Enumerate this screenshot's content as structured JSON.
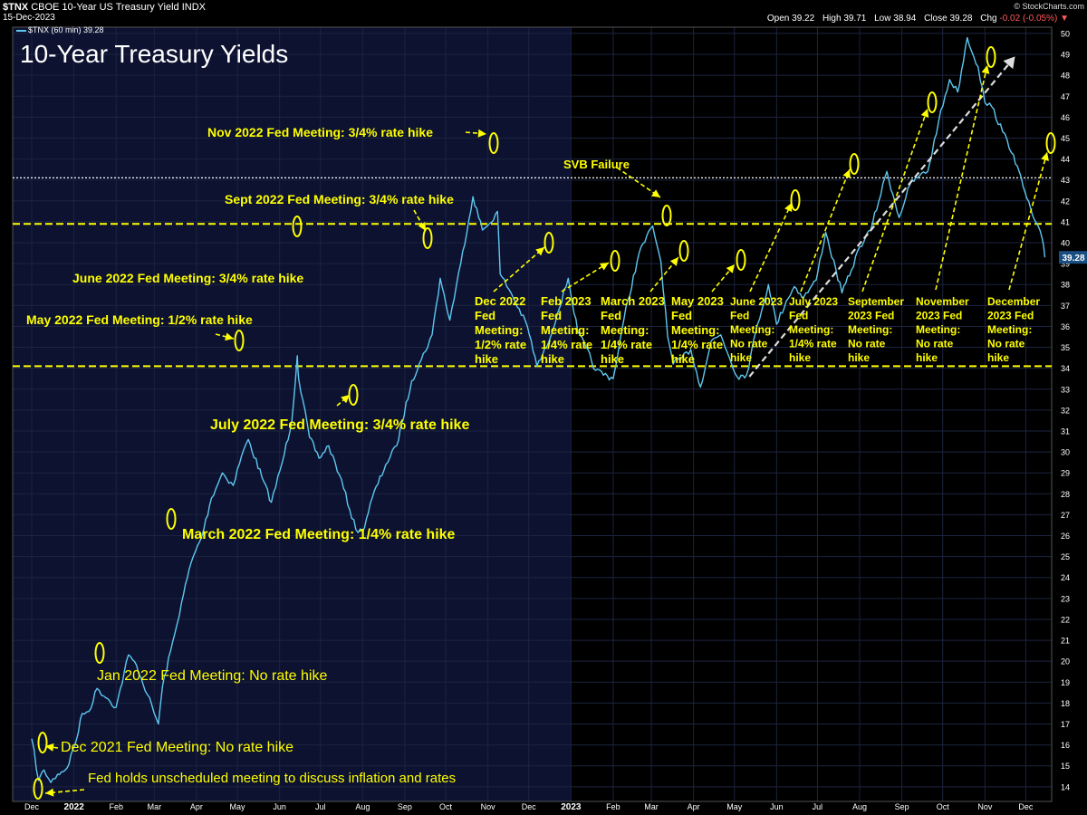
{
  "header": {
    "symbol": "$TNX",
    "description": "CBOE 10-Year US Treasury Yield INDX",
    "date": "15-Dec-2023",
    "legend": "$TNX (60 min) 39.28",
    "credit": "© StockCharts.com",
    "ohlc": {
      "open_label": "Open",
      "open": "39.22",
      "high_label": "High",
      "high": "39.71",
      "low_label": "Low",
      "low": "38.94",
      "close_label": "Close",
      "close": "39.28",
      "chg_label": "Chg",
      "chg": "-0.02 (-0.05%)",
      "chg_suffix": "▼"
    }
  },
  "chart_data": {
    "type": "line",
    "title": "10-Year Treasury Yields",
    "y_range": [
      13.3,
      50.3
    ],
    "y_ticks": [
      14,
      15,
      16,
      17,
      18,
      19,
      20,
      21,
      22,
      23,
      24,
      25,
      26,
      27,
      28,
      29,
      30,
      31,
      32,
      33,
      34,
      35,
      36,
      37,
      38,
      39,
      40,
      41,
      42,
      43,
      44,
      45,
      46,
      47,
      48,
      49,
      50
    ],
    "x_ticks": [
      "Dec",
      "2022",
      "Feb",
      "Mar",
      "Apr",
      "May",
      "Jun",
      "Jul",
      "Aug",
      "Sep",
      "Oct",
      "Nov",
      "Dec",
      "2023",
      "Feb",
      "Mar",
      "Apr",
      "May",
      "Jun",
      "Jul",
      "Aug",
      "Sep",
      "Oct",
      "Nov",
      "Dec"
    ],
    "last_value": "39.28",
    "colors": {
      "line": "#5ec8f0",
      "annotation": "#ffff00",
      "background_2022": "#0c1230",
      "background_2023": "#000000",
      "grid": "#1c2440",
      "trend_arrow": "#dddddd"
    },
    "series": [
      {
        "x": [
          "2021-12-01",
          "2021-12-06",
          "2021-12-10",
          "2021-12-15",
          "2021-12-20",
          "2021-12-27",
          "2022-01-03",
          "2022-01-07",
          "2022-01-12",
          "2022-01-18",
          "2022-01-26",
          "2022-02-01",
          "2022-02-10",
          "2022-02-16",
          "2022-02-24",
          "2022-03-04",
          "2022-03-07",
          "2022-03-16",
          "2022-03-21",
          "2022-03-28",
          "2022-04-05",
          "2022-04-12",
          "2022-04-20",
          "2022-04-28",
          "2022-05-04",
          "2022-05-09",
          "2022-05-19",
          "2022-05-26",
          "2022-06-03",
          "2022-06-10",
          "2022-06-14",
          "2022-06-15",
          "2022-06-23",
          "2022-06-30",
          "2022-07-07",
          "2022-07-15",
          "2022-07-27",
          "2022-08-01",
          "2022-08-08",
          "2022-08-18",
          "2022-08-26",
          "2022-09-06",
          "2022-09-13",
          "2022-09-21",
          "2022-09-27",
          "2022-10-04",
          "2022-10-12",
          "2022-10-21",
          "2022-10-28",
          "2022-11-02",
          "2022-11-08",
          "2022-11-10",
          "2022-11-18",
          "2022-11-30",
          "2022-12-07",
          "2022-12-14",
          "2022-12-22",
          "2022-12-30",
          "2023-01-06",
          "2023-01-12",
          "2023-01-19",
          "2023-02-01",
          "2023-02-09",
          "2023-02-20",
          "2023-03-02",
          "2023-03-08",
          "2023-03-13",
          "2023-03-17",
          "2023-03-22",
          "2023-03-30",
          "2023-04-06",
          "2023-04-14",
          "2023-04-21",
          "2023-05-03",
          "2023-05-10",
          "2023-05-18",
          "2023-05-26",
          "2023-06-01",
          "2023-06-08",
          "2023-06-14",
          "2023-06-21",
          "2023-06-30",
          "2023-07-07",
          "2023-07-19",
          "2023-07-26",
          "2023-08-01",
          "2023-08-09",
          "2023-08-21",
          "2023-08-30",
          "2023-09-07",
          "2023-09-14",
          "2023-09-20",
          "2023-09-28",
          "2023-10-06",
          "2023-10-12",
          "2023-10-19",
          "2023-10-27",
          "2023-11-01",
          "2023-11-06",
          "2023-11-14",
          "2023-11-22",
          "2023-11-29",
          "2023-12-06",
          "2023-12-13",
          "2023-12-15"
        ],
        "y": [
          16.3,
          14.3,
          14.8,
          14.2,
          14.6,
          14.9,
          16.3,
          17.5,
          17.6,
          18.7,
          18.2,
          17.8,
          20.3,
          19.8,
          18.4,
          17.0,
          18.8,
          21.3,
          22.8,
          24.7,
          26.0,
          27.8,
          29.0,
          28.4,
          29.8,
          30.6,
          28.8,
          27.6,
          29.5,
          31.5,
          34.6,
          33.5,
          30.7,
          29.7,
          30.3,
          28.9,
          26.3,
          26.2,
          27.8,
          29.4,
          30.3,
          33.4,
          34.4,
          35.6,
          38.3,
          36.3,
          39.0,
          42.2,
          40.6,
          40.9,
          41.5,
          38.5,
          37.6,
          36.0,
          34.1,
          35.0,
          36.6,
          38.3,
          35.7,
          35.0,
          33.9,
          33.5,
          36.4,
          39.5,
          40.8,
          39.1,
          35.5,
          34.2,
          34.4,
          34.9,
          33.1,
          35.3,
          35.6,
          33.6,
          33.7,
          36.1,
          38.0,
          36.1,
          37.2,
          37.9,
          37.4,
          38.2,
          40.5,
          37.6,
          38.7,
          39.8,
          40.6,
          43.4,
          41.2,
          42.8,
          43.2,
          43.4,
          45.8,
          47.8,
          47.2,
          49.8,
          48.4,
          46.7,
          46.5,
          45.3,
          44.2,
          42.7,
          41.3,
          40.2,
          39.3
        ]
      }
    ],
    "horizontal_lines": [
      {
        "value": 43.1,
        "style": "dotted-white"
      },
      {
        "value": 40.9,
        "style": "dashed-yellow"
      },
      {
        "value": 34.1,
        "style": "dashed-yellow"
      }
    ],
    "annotations": [
      {
        "text": "Fed holds unscheduled meeting to discuss inflation and rates"
      },
      {
        "text": "Dec 2021 Fed Meeting: No rate hike"
      },
      {
        "text": "Jan 2022 Fed Meeting: No rate hike"
      },
      {
        "text": "March 2022 Fed Meeting: 1/4% rate hike"
      },
      {
        "text": "May 2022 Fed Meeting: 1/2% rate hike"
      },
      {
        "text": "June 2022 Fed Meeting: 3/4% rate hike"
      },
      {
        "text": "July 2022 Fed Meeting: 3/4% rate hike"
      },
      {
        "text": "Sept 2022 Fed Meeting: 3/4% rate hike"
      },
      {
        "text": "Nov 2022 Fed Meeting: 3/4% rate hike"
      },
      {
        "text": "Dec 2022 Fed Meeting: 1/2% rate hike",
        "lines": [
          "Dec 2022",
          "Fed",
          "Meeting:",
          "1/2% rate",
          "hike"
        ]
      },
      {
        "text": "Feb 2023 Fed Meeting: 1/4% rate hike",
        "lines": [
          "Feb 2023",
          "Fed",
          "Meeting:",
          "1/4% rate",
          "hike"
        ]
      },
      {
        "text": "March 2023 Fed Meeting: 1/4% rate hike",
        "lines": [
          "March 2023",
          "Fed",
          "Meeting:",
          "1/4% rate",
          "hike"
        ]
      },
      {
        "text": "SVB Failure"
      },
      {
        "text": "May 2023 Fed Meeting: 1/4% rate hike",
        "lines": [
          "May 2023",
          "Fed",
          "Meeting:",
          "1/4% rate",
          "hike"
        ]
      },
      {
        "text": "June 2023 Fed Meeting: No rate hike",
        "lines": [
          "June 2023",
          "Fed",
          "Meeting:",
          "No rate",
          "hike"
        ]
      },
      {
        "text": "July 2023 Fed Meeting: 1/4% rate hike",
        "lines": [
          "July 2023",
          "Fed",
          "Meeting:",
          "1/4% rate",
          "hike"
        ]
      },
      {
        "text": "September 2023 Fed Meeting: No rate hike",
        "lines": [
          "September",
          "2023 Fed",
          "Meeting:",
          "No rate",
          "hike"
        ]
      },
      {
        "text": "November 2023 Fed Meeting: No rate hike",
        "lines": [
          "November",
          "2023 Fed",
          "Meeting:",
          "No rate",
          "hike"
        ]
      },
      {
        "text": "December 2023 Fed Meeting: No rate hike",
        "lines": [
          "December",
          "2023 Fed",
          "Meeting:",
          "No rate",
          "hike"
        ]
      }
    ]
  }
}
